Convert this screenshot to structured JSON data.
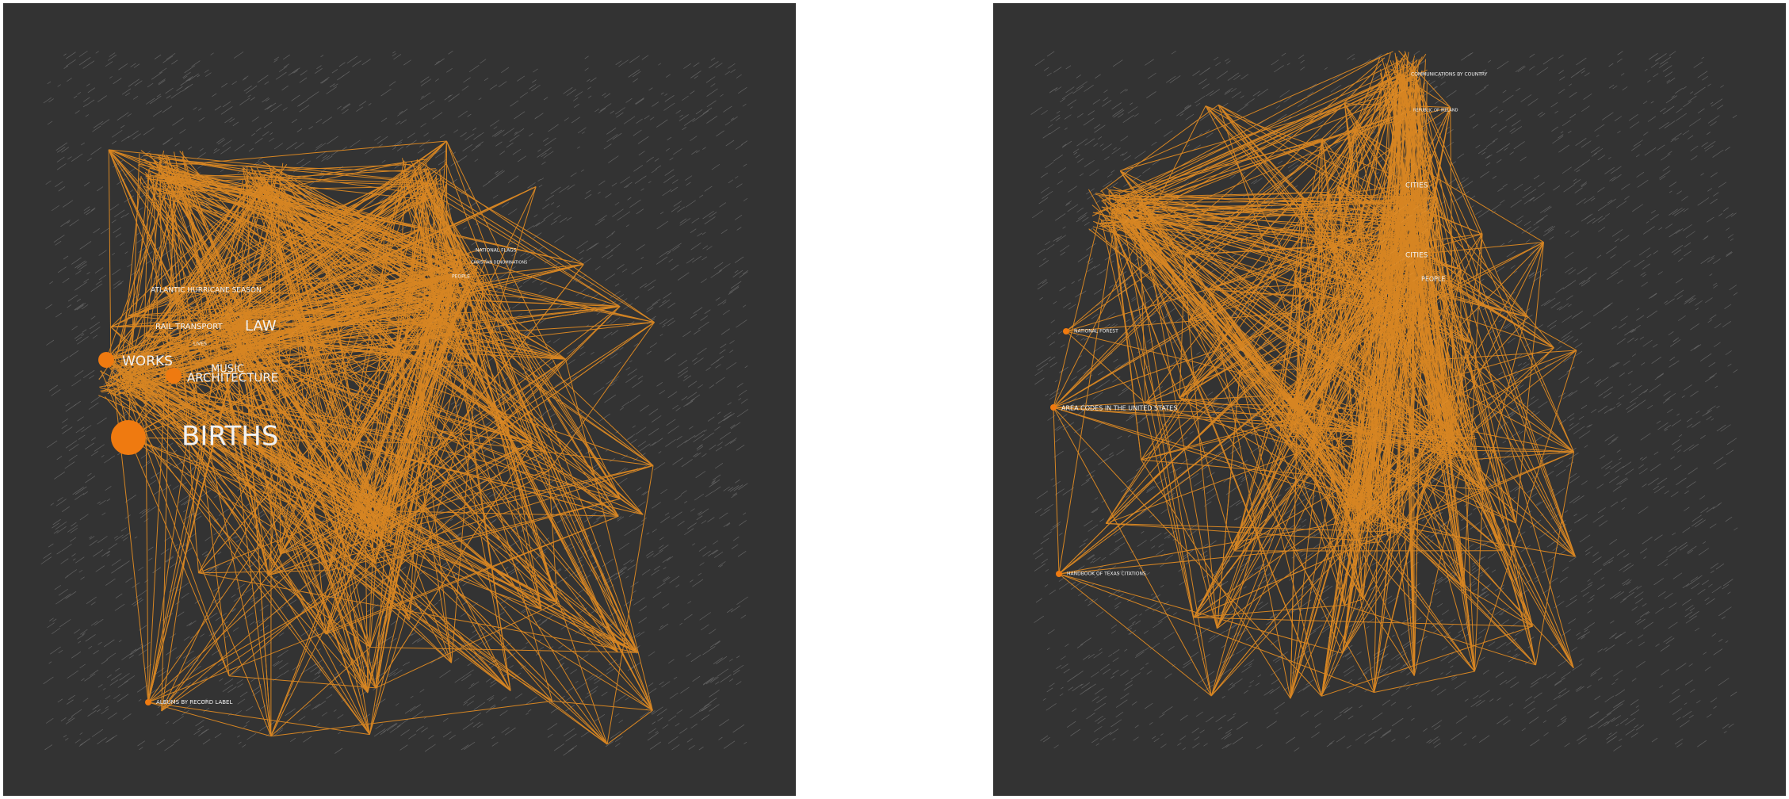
{
  "colors": {
    "background": "#ffffff",
    "panel": "#333333",
    "texture": "#8a8a8a",
    "edge": "#ff9a1f",
    "node": "#ef7a10",
    "label": "#f2f2f2"
  },
  "graphs": [
    {
      "id": "left",
      "labels": [
        {
          "text": "BIRTHS",
          "size": "xl",
          "node": true
        },
        {
          "text": "WORKS",
          "size": "l",
          "node": true
        },
        {
          "text": "ARCHITECTURE",
          "size": "l",
          "node": true
        },
        {
          "text": "LAW",
          "size": "l",
          "node": false
        },
        {
          "text": "MUSIC",
          "size": "m",
          "node": false
        },
        {
          "text": "RAIL TRANSPORT",
          "size": "m",
          "node": false
        },
        {
          "text": "LIVES",
          "size": "s",
          "node": false
        },
        {
          "text": "ATLANTIC HURRICANE SEASON",
          "size": "m",
          "node": false
        },
        {
          "text": "NATIONAL FLAGS",
          "size": "s",
          "node": false
        },
        {
          "text": "CHRISTIAN DENOMINATIONS",
          "size": "xs",
          "node": false
        },
        {
          "text": "PEOPLE",
          "size": "s",
          "node": false
        },
        {
          "text": "ALBUMS BY RECORD LABEL",
          "size": "s",
          "node": true
        }
      ]
    },
    {
      "id": "right",
      "labels": [
        {
          "text": "COMMUNICATIONS BY COUNTRY",
          "size": "s",
          "node": false
        },
        {
          "text": "REPUBLIC OF IRELAND",
          "size": "xs",
          "node": false
        },
        {
          "text": "CITIES",
          "size": "s",
          "node": false
        },
        {
          "text": "CITIES",
          "size": "s",
          "node": false
        },
        {
          "text": "PEOPLE",
          "size": "s",
          "node": false
        },
        {
          "text": "NATIONAL FOREST",
          "size": "xs",
          "node": true
        },
        {
          "text": "AREA CODES IN THE UNITED STATES",
          "size": "m",
          "node": true
        },
        {
          "text": "HANDBOOK OF TEXAS CITATIONS",
          "size": "s",
          "node": true
        }
      ]
    }
  ]
}
